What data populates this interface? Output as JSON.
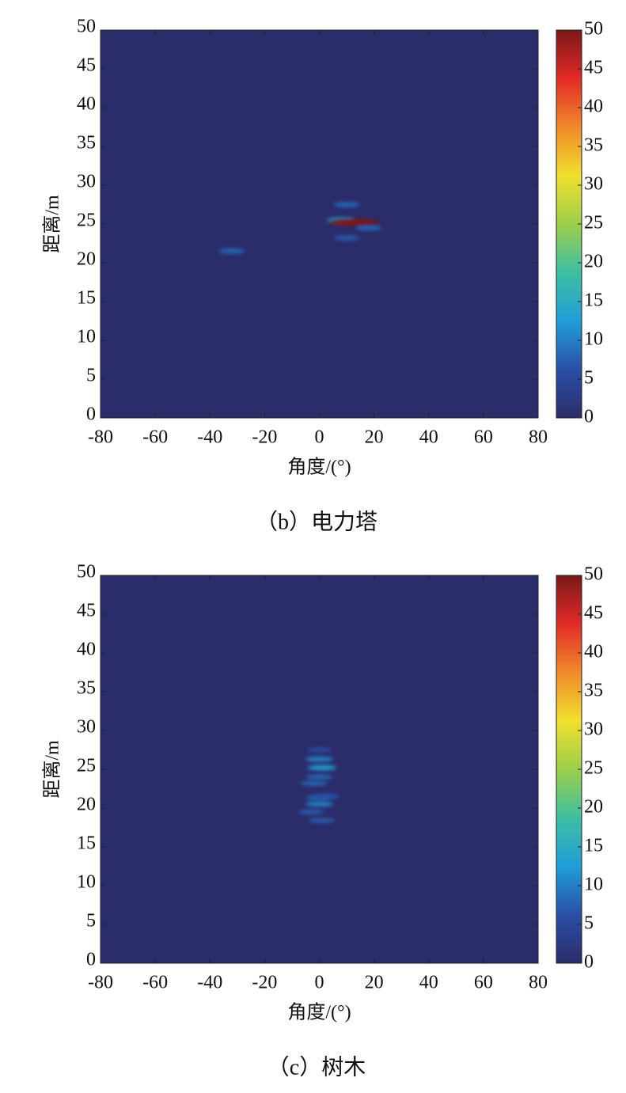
{
  "chart_data": [
    {
      "type": "heatmap",
      "caption": "（b）电力塔",
      "xlabel": "角度/(°)",
      "ylabel": "距离/m",
      "xlim": [
        -80,
        80
      ],
      "xticks": [
        -80,
        -60,
        -40,
        -20,
        0,
        20,
        40,
        60,
        80
      ],
      "ylim": [
        0,
        50
      ],
      "yticks": [
        0,
        5,
        10,
        15,
        20,
        25,
        30,
        35,
        40,
        45,
        50
      ],
      "zlim": [
        0,
        50
      ],
      "zticks": [
        0,
        5,
        10,
        15,
        20,
        25,
        30,
        35,
        40,
        45,
        50
      ],
      "colormap": [
        "#2b2d6a",
        "#2a4fa6",
        "#1f9fd8",
        "#3dbfa2",
        "#9ccf4a",
        "#f1df2c",
        "#f08a2a",
        "#e32a27",
        "#7a1818"
      ],
      "x": [
        -32,
        10,
        8,
        13,
        18,
        10
      ],
      "y": [
        21.5,
        27.5,
        25.5,
        25.2,
        24.5,
        23.2
      ],
      "values": [
        8,
        8,
        12,
        50,
        8,
        7
      ]
    },
    {
      "type": "heatmap",
      "caption": "（c）树木",
      "xlabel": "角度/(°)",
      "ylabel": "距离/m",
      "xlim": [
        -80,
        80
      ],
      "xticks": [
        -80,
        -60,
        -40,
        -20,
        0,
        20,
        40,
        60,
        80
      ],
      "ylim": [
        0,
        50
      ],
      "yticks": [
        0,
        5,
        10,
        15,
        20,
        25,
        30,
        35,
        40,
        45,
        50
      ],
      "zlim": [
        0,
        50
      ],
      "zticks": [
        0,
        5,
        10,
        15,
        20,
        25,
        30,
        35,
        40,
        45,
        50
      ],
      "colormap": [
        "#2b2d6a",
        "#2a4fa6",
        "#1f9fd8",
        "#3dbfa2",
        "#9ccf4a",
        "#f1df2c",
        "#f08a2a",
        "#e32a27",
        "#7a1818"
      ],
      "x": [
        0,
        0,
        1,
        0,
        -2,
        0,
        3,
        0,
        -3,
        1
      ],
      "y": [
        27.5,
        26.3,
        25.2,
        24,
        23.2,
        21.3,
        21.5,
        20.5,
        19.5,
        18.4
      ],
      "values": [
        5,
        10,
        12,
        8,
        8,
        8,
        6,
        10,
        7,
        7
      ]
    }
  ]
}
